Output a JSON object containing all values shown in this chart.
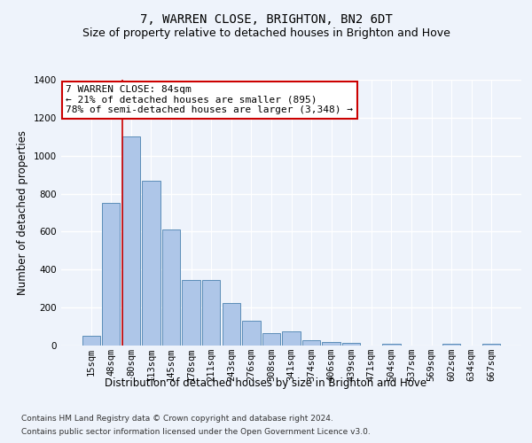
{
  "title": "7, WARREN CLOSE, BRIGHTON, BN2 6DT",
  "subtitle": "Size of property relative to detached houses in Brighton and Hove",
  "xlabel": "Distribution of detached houses by size in Brighton and Hove",
  "ylabel": "Number of detached properties",
  "categories": [
    "15sqm",
    "48sqm",
    "80sqm",
    "113sqm",
    "145sqm",
    "178sqm",
    "211sqm",
    "243sqm",
    "276sqm",
    "308sqm",
    "341sqm",
    "374sqm",
    "406sqm",
    "439sqm",
    "471sqm",
    "504sqm",
    "537sqm",
    "569sqm",
    "602sqm",
    "634sqm",
    "667sqm"
  ],
  "values": [
    50,
    750,
    1100,
    870,
    610,
    345,
    345,
    225,
    130,
    65,
    75,
    30,
    20,
    15,
    0,
    10,
    0,
    0,
    10,
    0,
    10
  ],
  "bar_color": "#aec6e8",
  "bar_edge_color": "#5b8db8",
  "annotation_box_text": "7 WARREN CLOSE: 84sqm\n← 21% of detached houses are smaller (895)\n78% of semi-detached houses are larger (3,348) →",
  "annotation_box_color": "#ffffff",
  "annotation_box_edge_color": "#cc0000",
  "vline_color": "#cc0000",
  "ylim": [
    0,
    1400
  ],
  "yticks": [
    0,
    200,
    400,
    600,
    800,
    1000,
    1200,
    1400
  ],
  "background_color": "#eef3fb",
  "grid_color": "#ffffff",
  "footer_line1": "Contains HM Land Registry data © Crown copyright and database right 2024.",
  "footer_line2": "Contains public sector information licensed under the Open Government Licence v3.0.",
  "title_fontsize": 10,
  "subtitle_fontsize": 9,
  "axis_label_fontsize": 8.5,
  "tick_fontsize": 7.5,
  "annotation_fontsize": 8,
  "footer_fontsize": 6.5
}
